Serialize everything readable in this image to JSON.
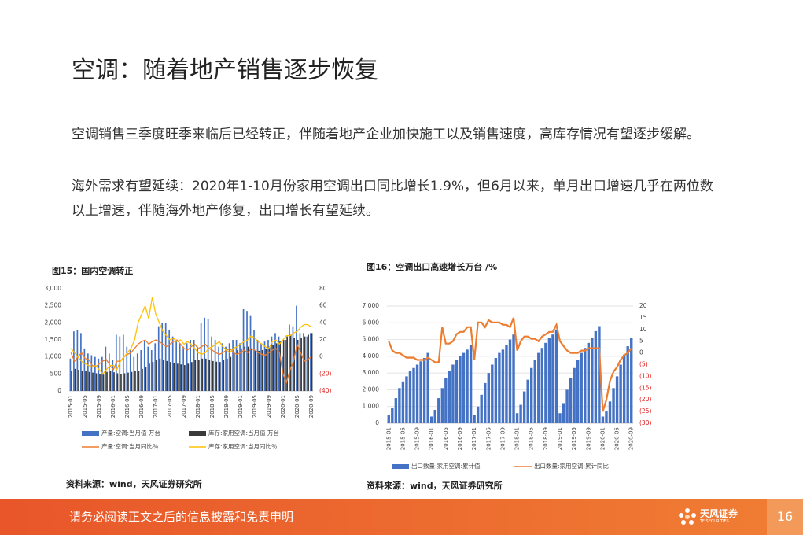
{
  "title": "空调：随着地产销售逐步恢复",
  "paragraphs": [
    "空调销售三季度旺季来临后已经转正，伴随着地产企业加快施工以及销售速度，高库存情况有望逐步缓解。",
    "海外需求有望延续：2020年1-10月份家用空调出口同比增长1.9%，但6月以来，单月出口增速几乎在两位数以上增速，伴随海外地产修复，出口增长有望延续。"
  ],
  "chart_data": [
    {
      "type": "combo",
      "title": "图15：国内空调转正",
      "source": "资料来源：wind，天风证券研究所",
      "categories": [
        "2015-01",
        null,
        null,
        null,
        "2015-05",
        null,
        null,
        null,
        "2015-09",
        null,
        null,
        null,
        "2016-01",
        null,
        null,
        null,
        "2016-05",
        null,
        null,
        null,
        "2016-09",
        null,
        null,
        null,
        "2017-01",
        null,
        null,
        null,
        "2017-05",
        null,
        null,
        null,
        "2017-09",
        null,
        null,
        null,
        "2018-01",
        null,
        null,
        null,
        "2018-05",
        null,
        null,
        null,
        "2018-09",
        null,
        null,
        null,
        "2019-01",
        null,
        null,
        null,
        "2019-05",
        null,
        null,
        null,
        "2019-09",
        null,
        null,
        null,
        "2020-01",
        null,
        null,
        null,
        "2020-05",
        null,
        null,
        null,
        "2020-09"
      ],
      "ylim": [
        0,
        3000
      ],
      "yticks": [
        0,
        500,
        {
          "value": 1000,
          "label": "1,000"
        },
        {
          "value": 1500,
          "label": "1,500"
        },
        {
          "value": 2000,
          "label": "2,000"
        },
        {
          "value": 2500,
          "label": "2,500"
        },
        {
          "value": 3000,
          "label": "3,000"
        }
      ],
      "y2lim": [
        -40,
        80
      ],
      "y2ticks": [
        {
          "value": -40,
          "label": "(40)"
        },
        {
          "value": -20,
          "label": "(20)"
        },
        0,
        20,
        40,
        60,
        80
      ],
      "grid": false,
      "negative_tick_color": "#e02020",
      "series": [
        {
          "name": "产量:空调:当月值 万台",
          "type": "bar",
          "color": "#4472c4",
          "values": [
            950,
            1750,
            1800,
            1700,
            1250,
            1100,
            1050,
            1000,
            950,
            1000,
            1300,
            1100,
            900,
            1650,
            1600,
            1650,
            1300,
            1200,
            1000,
            1100,
            1200,
            1500,
            1300,
            1200,
            1400,
            1900,
            2000,
            2000,
            1800,
            1600,
            1500,
            1400,
            1300,
            1400,
            1500,
            1500,
            1300,
            2000,
            2150,
            2100,
            1600,
            1500,
            1300,
            1400,
            1300,
            1400,
            1500,
            1500,
            1400,
            2400,
            2350,
            2200,
            1800,
            1500,
            1400,
            1450,
            1500,
            1600,
            1700,
            1600,
            1000,
            1500,
            1950,
            1900,
            2500,
            1700,
            1700,
            1600,
            1700
          ]
        },
        {
          "name": "库存:家用空调:当月值 万台",
          "type": "bar",
          "color": "#3a3a3a",
          "values": [
            600,
            650,
            620,
            600,
            580,
            560,
            540,
            520,
            500,
            480,
            560,
            600,
            550,
            520,
            500,
            520,
            540,
            560,
            580,
            600,
            650,
            700,
            800,
            850,
            900,
            950,
            920,
            880,
            850,
            820,
            800,
            780,
            760,
            800,
            850,
            900,
            900,
            950,
            950,
            920,
            880,
            860,
            850,
            900,
            950,
            1000,
            1100,
            1200,
            1250,
            1300,
            1300,
            1250,
            1200,
            1180,
            1200,
            1250,
            1300,
            1350,
            1400,
            1450,
            1500,
            1600,
            1650,
            1550,
            1500,
            1550,
            1600,
            1650,
            1700
          ]
        },
        {
          "name": "产量:空调:当月同比％",
          "type": "line",
          "axis": "y2",
          "color": "#ed7d31",
          "values": [
            5,
            -5,
            0,
            5,
            -2,
            -3,
            -10,
            -12,
            -8,
            -5,
            -3,
            -10,
            -15,
            -5,
            -5,
            0,
            3,
            5,
            10,
            15,
            18,
            20,
            15,
            18,
            20,
            18,
            15,
            12,
            15,
            18,
            20,
            15,
            10,
            8,
            12,
            15,
            10,
            12,
            15,
            10,
            8,
            5,
            3,
            5,
            8,
            10,
            5,
            3,
            5,
            8,
            5,
            10,
            8,
            5,
            3,
            2,
            5,
            8,
            10,
            5,
            -20,
            -30,
            -15,
            -5,
            15,
            5,
            -5,
            -3,
            0
          ]
        },
        {
          "name": "库存:家用空调:当月同比％",
          "type": "line",
          "axis": "y2",
          "color": "#ffc000",
          "values": [
            10,
            5,
            0,
            -5,
            -8,
            -10,
            -12,
            -10,
            -15,
            -20,
            -15,
            -10,
            -10,
            -15,
            -5,
            0,
            5,
            10,
            20,
            40,
            50,
            60,
            45,
            70,
            50,
            40,
            30,
            25,
            20,
            22,
            18,
            20,
            15,
            18,
            15,
            10,
            5,
            3,
            5,
            10,
            12,
            15,
            18,
            12,
            8,
            5,
            10,
            12,
            15,
            18,
            20,
            25,
            22,
            18,
            15,
            12,
            10,
            18,
            20,
            15,
            20,
            25,
            25,
            28,
            30,
            35,
            38,
            38,
            35
          ]
        }
      ]
    },
    {
      "type": "combo",
      "title": "图16：空调出口高速增长万台 /%",
      "source": "资料来源：wind，天风证券研究所",
      "categories": [
        "2015-01",
        null,
        null,
        null,
        "2015-05",
        null,
        null,
        null,
        "2015-09",
        null,
        null,
        null,
        "2016-01",
        null,
        null,
        null,
        "2016-05",
        null,
        null,
        null,
        "2016-09",
        null,
        null,
        null,
        "2017-01",
        null,
        null,
        null,
        "2017-05",
        null,
        null,
        null,
        "2017-09",
        null,
        null,
        null,
        "2018-01",
        null,
        null,
        null,
        "2018-05",
        null,
        null,
        null,
        "2018-09",
        null,
        null,
        null,
        "2019-01",
        null,
        null,
        null,
        "2019-05",
        null,
        null,
        null,
        "2019-09",
        null,
        null,
        null,
        "2020-01",
        null,
        null,
        null,
        "2020-05",
        null,
        null,
        null,
        "2020-09"
      ],
      "ylim": [
        0,
        7000
      ],
      "yticks": [
        0,
        {
          "value": 1000,
          "label": "1,000"
        },
        {
          "value": 2000,
          "label": "2,000"
        },
        {
          "value": 3000,
          "label": "3,000"
        },
        {
          "value": 4000,
          "label": "4,000"
        },
        {
          "value": 5000,
          "label": "5,000"
        },
        {
          "value": 6000,
          "label": "6,000"
        },
        {
          "value": 7000,
          "label": "7,000"
        }
      ],
      "y2lim": [
        -30,
        20
      ],
      "y2ticks": [
        {
          "value": -30,
          "label": "(30)"
        },
        {
          "value": -25,
          "label": "(25)"
        },
        {
          "value": -20,
          "label": "(20)"
        },
        {
          "value": -15,
          "label": "(15)"
        },
        {
          "value": -10,
          "label": "(10)"
        },
        {
          "value": -5,
          "label": "(5)"
        },
        0,
        5,
        10,
        15,
        20
      ],
      "grid": true,
      "negative_tick_color": "#e02020",
      "series": [
        {
          "name": "出口数量:家用空调:累计值",
          "type": "bar",
          "color": "#4472c4",
          "values": [
            500,
            900,
            1500,
            2100,
            2500,
            2800,
            3100,
            3300,
            3500,
            3700,
            3900,
            4200,
            400,
            800,
            1500,
            2100,
            2700,
            3100,
            3500,
            3800,
            4000,
            4200,
            4400,
            4700,
            500,
            1000,
            1700,
            2400,
            3000,
            3500,
            3900,
            4200,
            4400,
            4700,
            5000,
            5300,
            600,
            1100,
            1900,
            2600,
            3300,
            3800,
            4200,
            4500,
            4800,
            5100,
            5300,
            5600,
            600,
            1200,
            2000,
            2700,
            3300,
            3800,
            4200,
            4500,
            4800,
            5100,
            5500,
            5800,
            400,
            700,
            1300,
            2100,
            2800,
            3500,
            4100,
            4600,
            5100
          ]
        },
        {
          "name": "出口数量:家用空调:累计同比",
          "type": "line",
          "axis": "y2",
          "color": "#ed7d31",
          "values": [
            5,
            1,
            0,
            0,
            -1,
            -2,
            -2,
            -2,
            -3,
            -3,
            -3,
            -2,
            -3,
            -4,
            -4,
            11,
            4,
            4,
            5,
            8,
            9,
            9,
            11,
            11,
            -3,
            13,
            13,
            11,
            14,
            13,
            13,
            13,
            12,
            12,
            11,
            15,
            1,
            5,
            7,
            7,
            6,
            6,
            5,
            7,
            8,
            9,
            9,
            12,
            5,
            3,
            1,
            0,
            0,
            0,
            1,
            1,
            2,
            2,
            2,
            2,
            -25,
            -20,
            -12,
            -8,
            -6,
            -3,
            -1,
            0,
            2
          ]
        }
      ]
    }
  ],
  "footer": {
    "disclaimer": "请务必阅读正文之后的信息披露和免责申明",
    "brand": "天风证券",
    "brand_en": "TF SECURITIES",
    "page": "16"
  }
}
